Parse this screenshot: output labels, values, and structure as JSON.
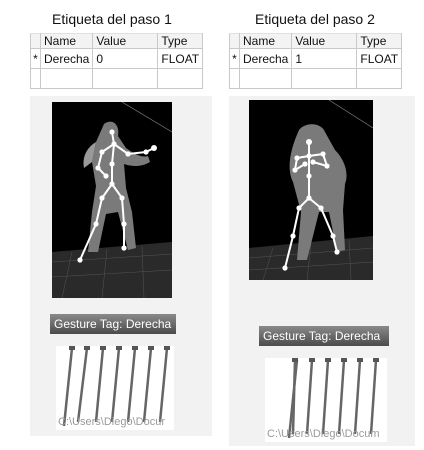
{
  "panels": [
    {
      "title": "Etiqueta del paso 1",
      "grid": {
        "headers": [
          "Name",
          "Value",
          "Type"
        ],
        "row": {
          "marker": "*",
          "name": "Derecha",
          "value": "0",
          "type": "FLOAT"
        }
      },
      "gesture_tag": "Gesture Tag: Derecha",
      "path": "C:\\Users\\Diego\\Docur"
    },
    {
      "title": "Etiqueta del paso 2",
      "grid": {
        "headers": [
          "Name",
          "Value",
          "Type"
        ],
        "row": {
          "marker": "*",
          "name": "Derecha",
          "value": "1",
          "type": "FLOAT"
        }
      },
      "gesture_tag": "Gesture Tag: Derecha",
      "path": "C:\\Users\\Diego\\Docum"
    }
  ]
}
